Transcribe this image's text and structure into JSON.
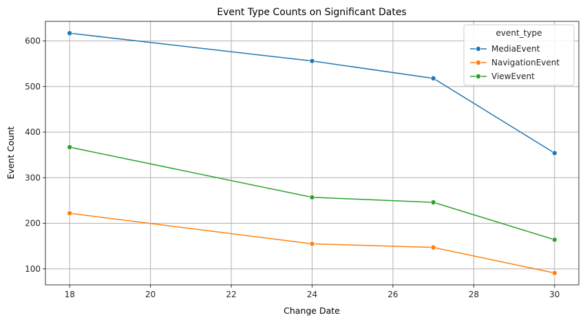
{
  "chart_data": {
    "type": "line",
    "title": "Event Type Counts on Significant Dates",
    "xlabel": "Change Date",
    "ylabel": "Event Count",
    "xlim": [
      17.4,
      30.6
    ],
    "ylim": [
      65,
      643
    ],
    "xticks": [
      18,
      20,
      22,
      24,
      26,
      28,
      30
    ],
    "yticks": [
      100,
      200,
      300,
      400,
      500,
      600
    ],
    "grid": true,
    "legend": {
      "title": "event_type",
      "placement": "top-right"
    },
    "x": [
      18,
      24,
      27,
      30
    ],
    "series": [
      {
        "name": "MediaEvent",
        "color": "#1f77b4",
        "values": [
          617,
          556,
          518,
          354
        ]
      },
      {
        "name": "NavigationEvent",
        "color": "#ff7f0e",
        "values": [
          222,
          155,
          147,
          91
        ]
      },
      {
        "name": "ViewEvent",
        "color": "#2ca02c",
        "values": [
          367,
          257,
          246,
          164
        ]
      }
    ]
  }
}
